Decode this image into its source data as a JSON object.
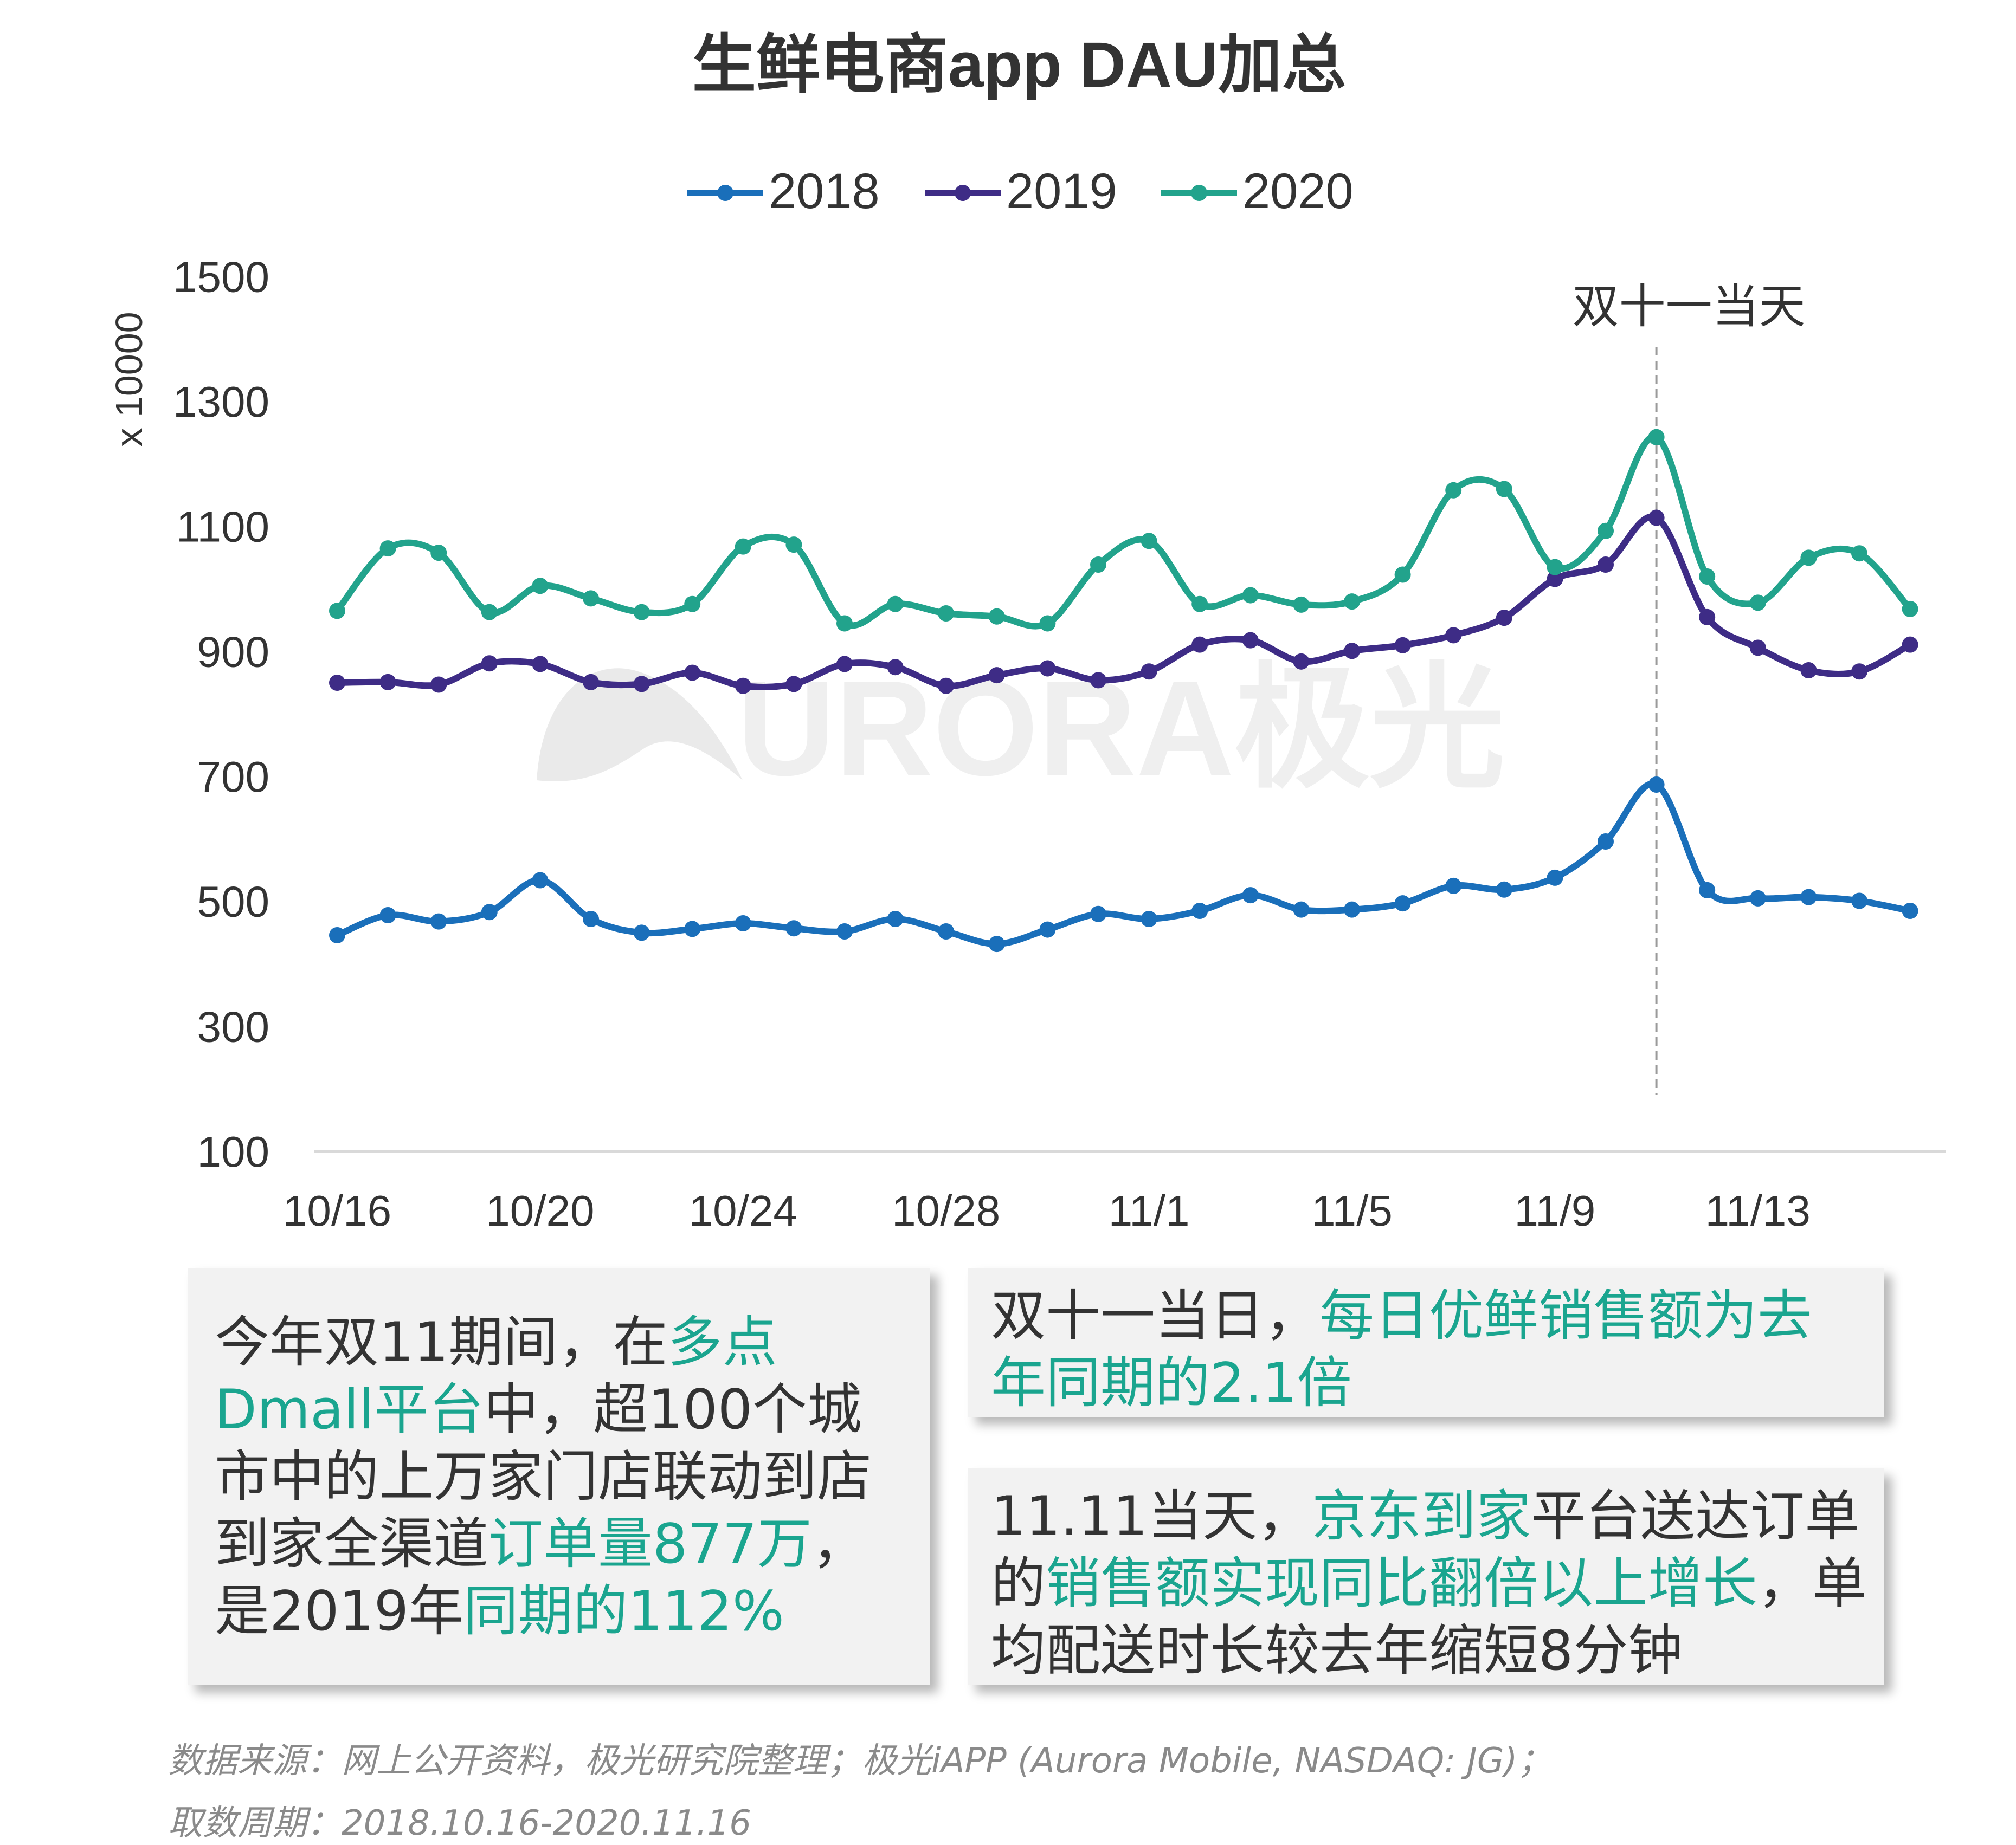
{
  "chart_data": {
    "type": "line",
    "title": "生鲜电商app DAU加总",
    "ylabel": "x 10000",
    "xlabel": "",
    "ylim": [
      100,
      1500
    ],
    "yticks": [
      100,
      300,
      500,
      700,
      900,
      1100,
      1300,
      1500
    ],
    "x_tick_labels": [
      "10/16",
      "10/20",
      "10/24",
      "10/28",
      "11/1",
      "11/5",
      "11/9",
      "11/13"
    ],
    "x_tick_indices": [
      0,
      4,
      8,
      12,
      16,
      20,
      24,
      28
    ],
    "categories": [
      "10/16",
      "10/17",
      "10/18",
      "10/19",
      "10/20",
      "10/21",
      "10/22",
      "10/23",
      "10/24",
      "10/25",
      "10/26",
      "10/27",
      "10/28",
      "10/29",
      "10/30",
      "10/31",
      "11/1",
      "11/2",
      "11/3",
      "11/4",
      "11/5",
      "11/6",
      "11/7",
      "11/8",
      "11/9",
      "11/10",
      "11/11",
      "11/12",
      "11/13",
      "11/14",
      "11/15",
      "11/16"
    ],
    "series": [
      {
        "name": "2018",
        "color": "#1a6fba",
        "values": [
          446,
          478,
          468,
          483,
          534,
          472,
          450,
          456,
          465,
          457,
          452,
          472,
          452,
          432,
          455,
          480,
          472,
          485,
          510,
          487,
          487,
          497,
          525,
          519,
          538,
          596,
          687,
          518,
          505,
          507,
          501,
          485
        ]
      },
      {
        "name": "2019",
        "color": "#3e2c86",
        "values": [
          850,
          851,
          847,
          881,
          880,
          851,
          848,
          866,
          845,
          848,
          880,
          875,
          845,
          862,
          873,
          854,
          868,
          911,
          918,
          884,
          901,
          910,
          926,
          954,
          1016,
          1039,
          1114,
          955,
          906,
          870,
          868,
          911
        ]
      },
      {
        "name": "2020",
        "color": "#22a38c",
        "values": [
          965,
          1065,
          1058,
          963,
          1005,
          985,
          963,
          976,
          1068,
          1071,
          945,
          976,
          961,
          956,
          945,
          1039,
          1077,
          976,
          990,
          975,
          980,
          1023,
          1158,
          1160,
          1035,
          1093,
          1243,
          1020,
          978,
          1050,
          1057,
          968
        ]
      }
    ],
    "annotation": {
      "label": "双十一当天",
      "index": 26
    },
    "legend_position": "top-center",
    "grid": false
  },
  "card1": {
    "segments": [
      {
        "text": "今年双11期间，在",
        "hl": false
      },
      {
        "text": "多点Dmall平台",
        "hl": true
      },
      {
        "text": "中，超100个城市中的上万家门店联动到店到家全渠道",
        "hl": false
      },
      {
        "text": "订单量877万",
        "hl": true
      },
      {
        "text": "，是2019年",
        "hl": false
      },
      {
        "text": "同期的112%",
        "hl": true
      }
    ]
  },
  "card2": {
    "segments": [
      {
        "text": "双十一当日，",
        "hl": false
      },
      {
        "text": "每日优鲜销售额为去年同期的2.1倍",
        "hl": true
      }
    ]
  },
  "card3": {
    "segments": [
      {
        "text": "11.11当天，",
        "hl": false
      },
      {
        "text": "京东到家",
        "hl": true
      },
      {
        "text": "平台送达订单的",
        "hl": false
      },
      {
        "text": "销售额实现同比翻倍以上增长",
        "hl": true
      },
      {
        "text": "，单均配送时长较去年缩短8分钟",
        "hl": false
      }
    ]
  },
  "watermark": "URORA极光",
  "source_line1": "数据来源：网上公开资料，极光研究院整理；极光iAPP (Aurora Mobile, NASDAQ: JG)；",
  "source_line2": "取数周期：2018.10.16-2020.11.16"
}
